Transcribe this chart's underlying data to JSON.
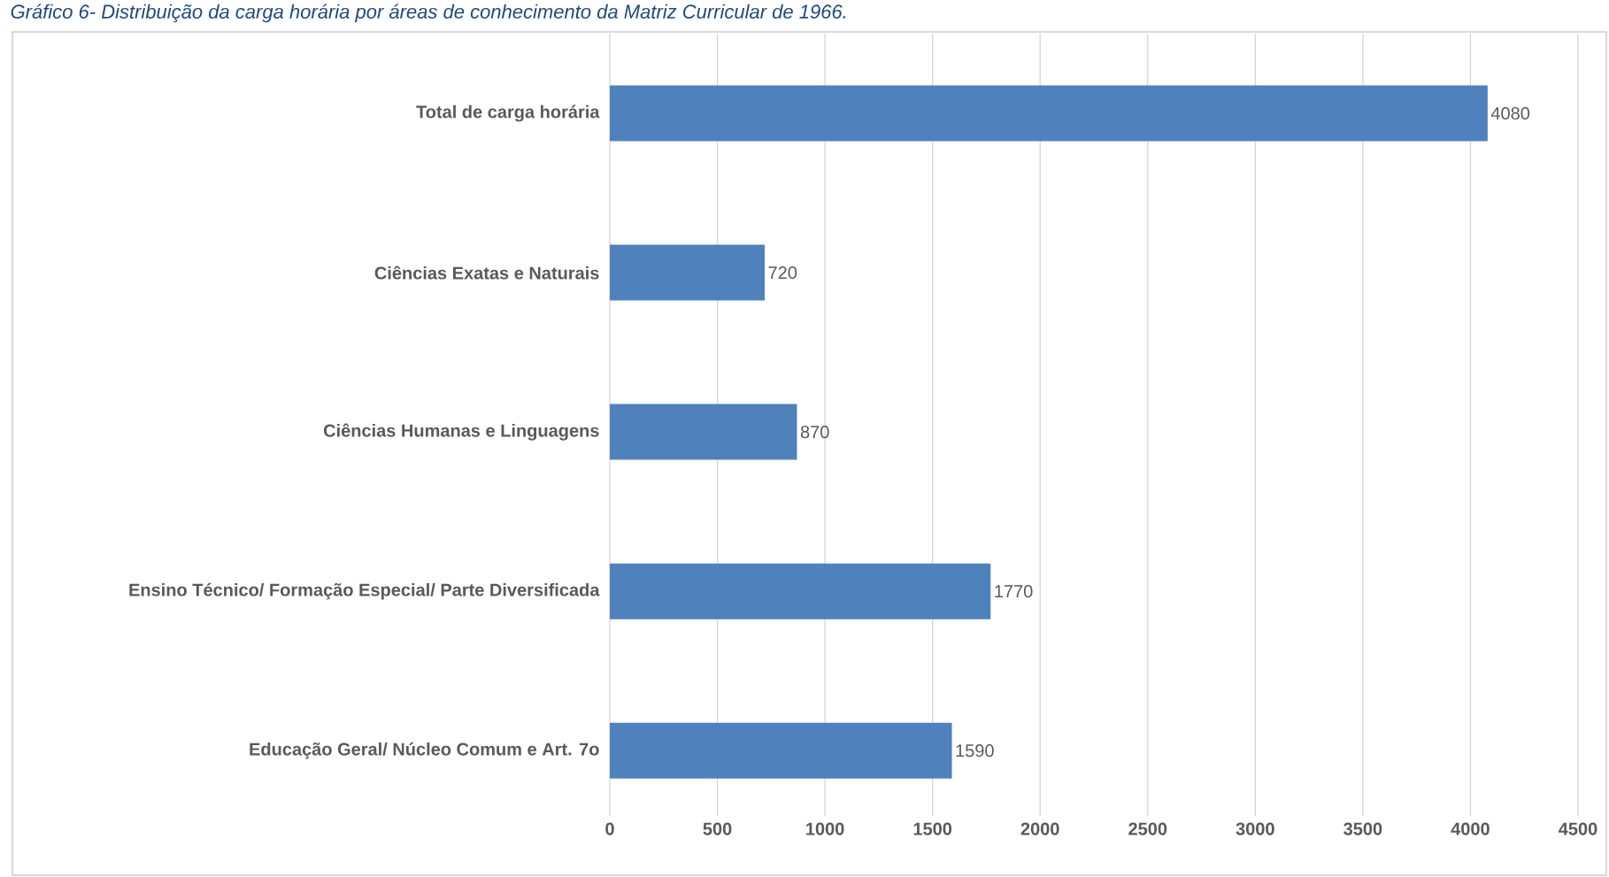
{
  "chart_data": {
    "type": "bar",
    "orientation": "horizontal",
    "title": "Gráfico 6- Distribuição da carga horária por áreas de conhecimento da Matriz Curricular de 1966.",
    "categories": [
      "Total de carga horária",
      "Ciências Exatas e Naturais",
      "Ciências Humanas e Linguagens",
      "Ensino Técnico/ Formação Especial/ Parte Diversificada",
      "Educação Geral/ Núcleo Comum e Art. 7o"
    ],
    "values": [
      4080,
      720,
      870,
      1770,
      1590
    ],
    "color": "#4f81bd",
    "xlim": [
      0,
      4500
    ],
    "xticks": [
      0,
      500,
      1000,
      1500,
      2000,
      2500,
      3000,
      3500,
      4000,
      4500
    ],
    "grid": "x",
    "data_labels": true
  }
}
